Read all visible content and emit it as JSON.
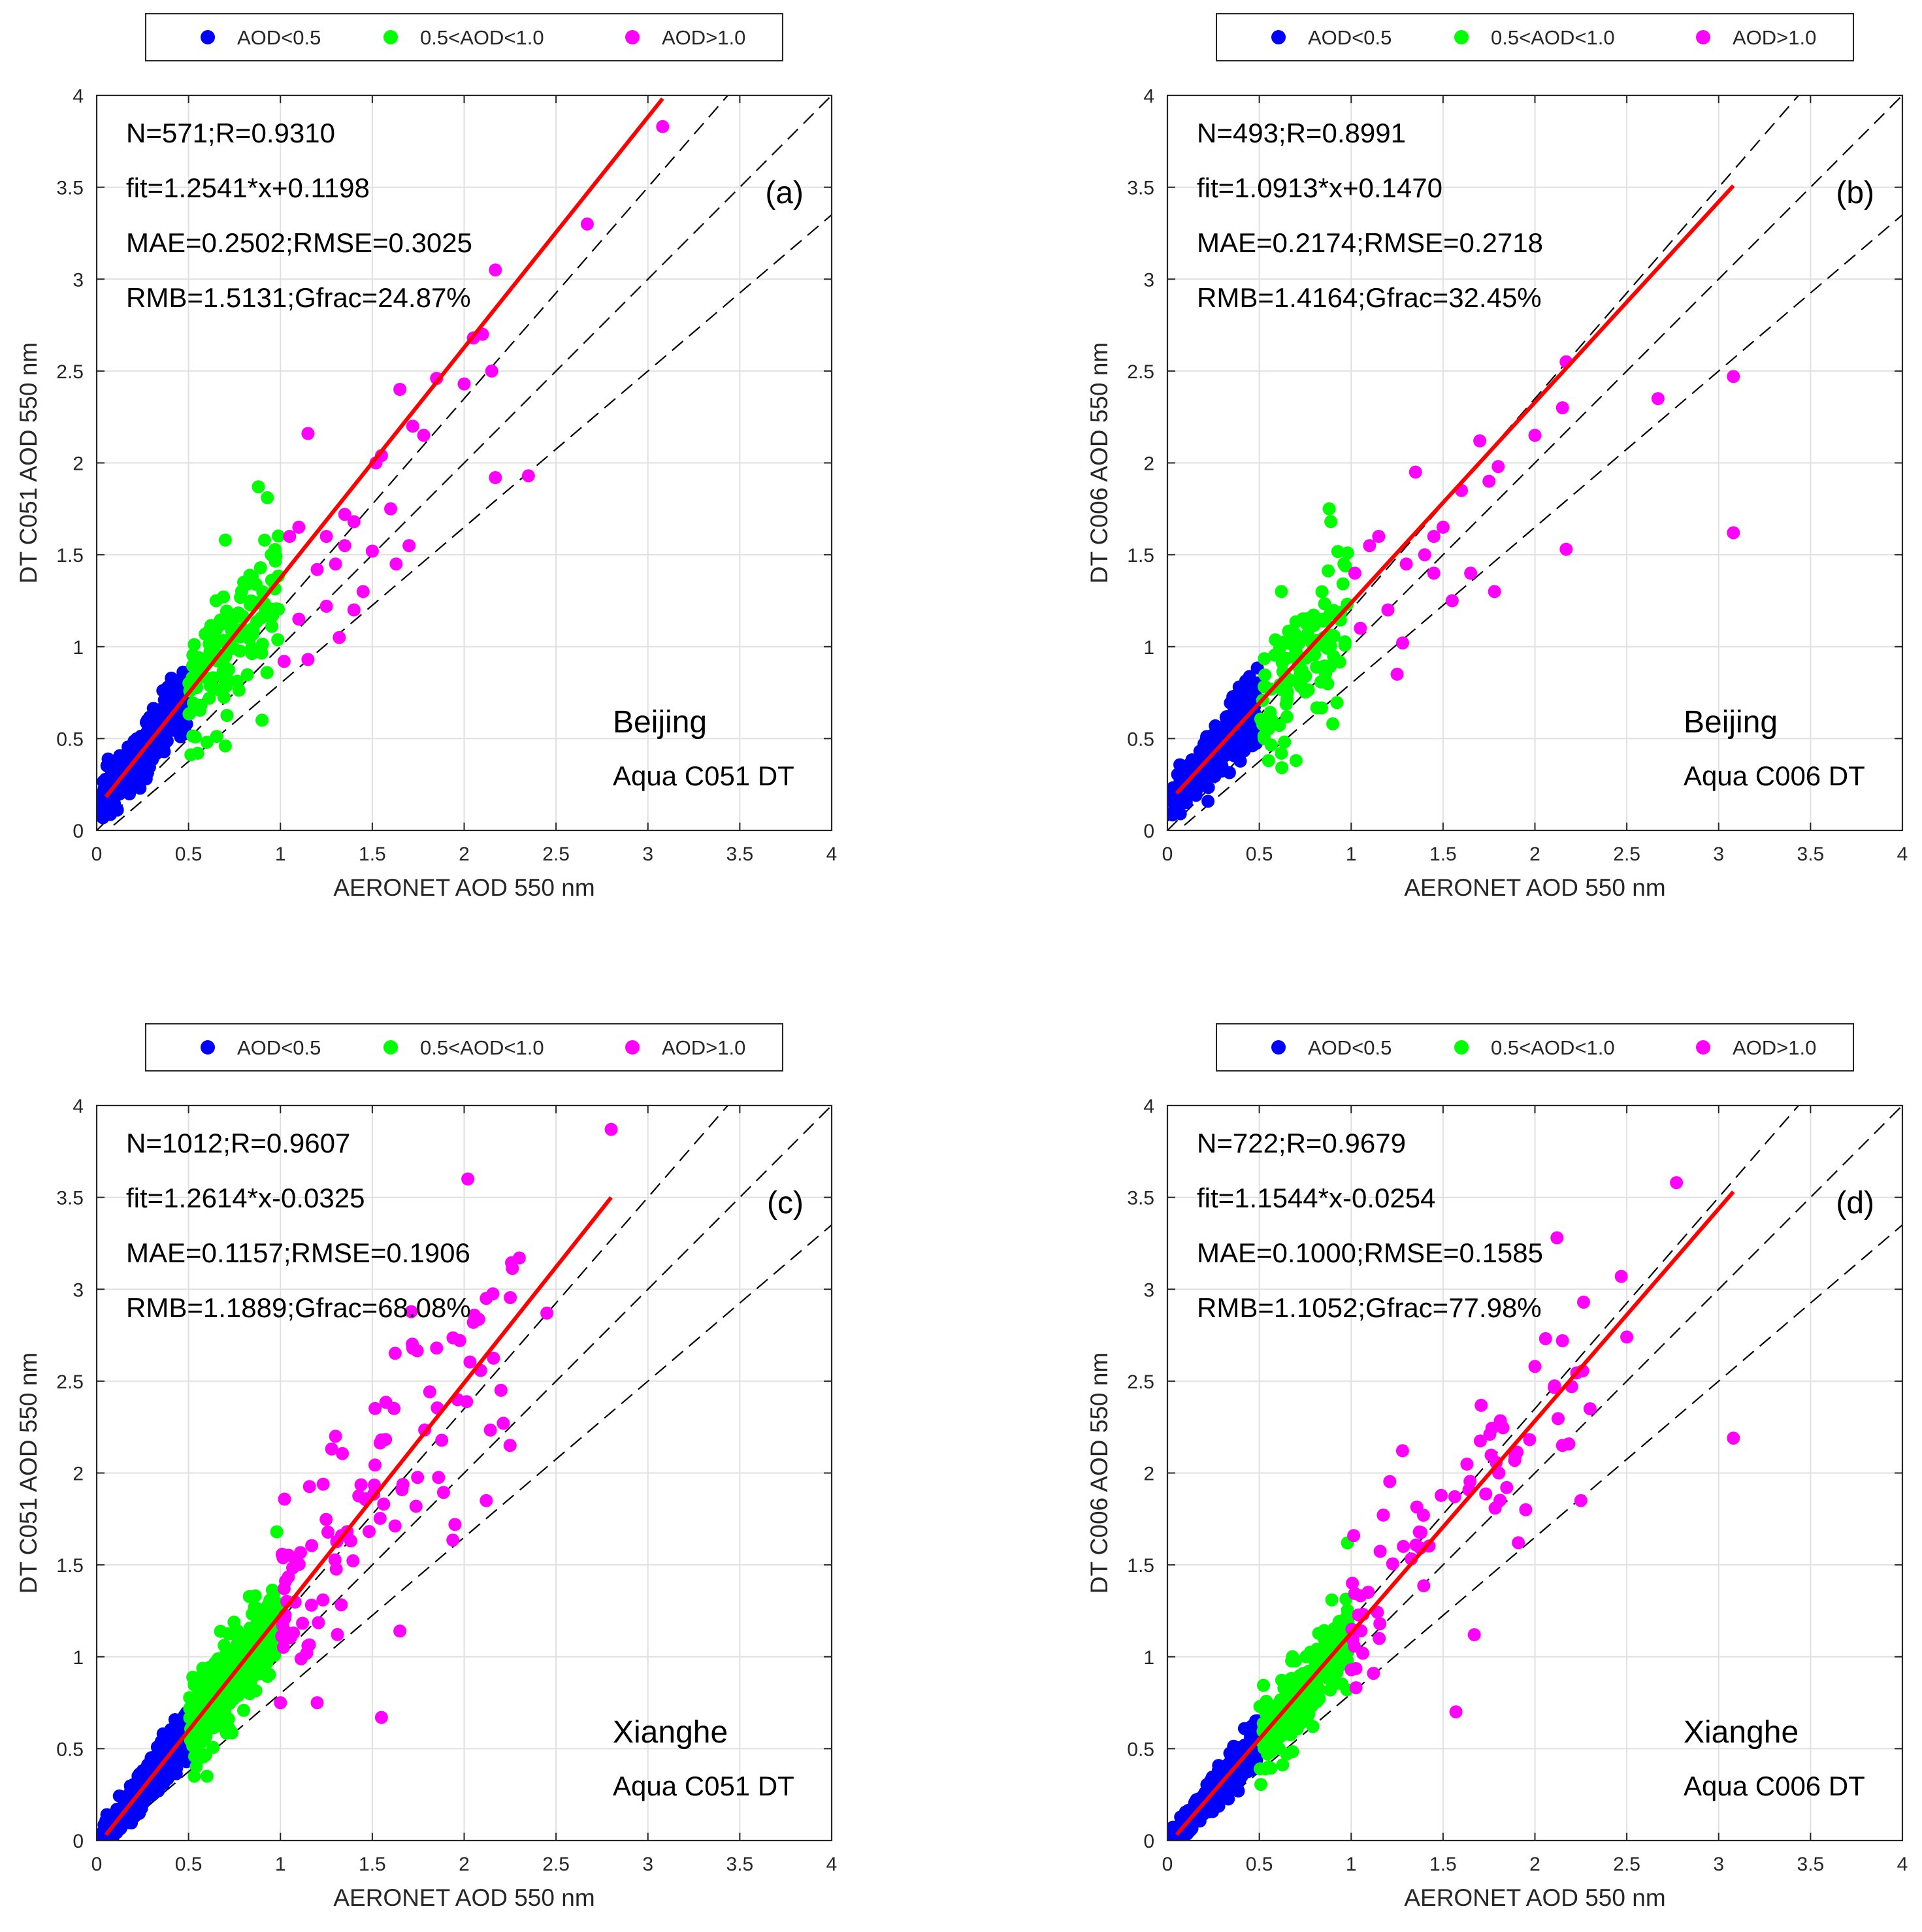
{
  "colors": {
    "low": "#0000ff",
    "mid": "#00ff00",
    "high": "#ff00ff",
    "fit": "#ff0000",
    "ref": "#000000",
    "grid": "#e0e0e0"
  },
  "chart_data": [
    {
      "type": "scatter",
      "panel": "(a)",
      "site": "Beijing",
      "product": "Aqua C051 DT",
      "xlabel": "AERONET AOD 550 nm",
      "ylabel": "DT C051 AOD 550 nm",
      "xlim": [
        0,
        4
      ],
      "ylim": [
        0,
        4
      ],
      "ticks": [
        "0",
        "0.5",
        "1",
        "1.5",
        "2",
        "2.5",
        "3",
        "3.5",
        "4"
      ],
      "legend": [
        "AOD<0.5",
        "0.5<AOD<1.0",
        "AOD>1.0"
      ],
      "stats": [
        "N=571;R=0.9310",
        "fit=1.2541*x+0.1198",
        "MAE=0.2502;RMSE=0.3025",
        "RMB=1.5131;Gfrac=24.87%"
      ],
      "fit": {
        "slope": 1.2541,
        "intercept": 0.1198,
        "x_range": [
          0.05,
          3.08
        ]
      },
      "n": 571,
      "seed": 11,
      "scatter_spread": 0.34,
      "high_points": [
        [
          1.02,
          0.92
        ],
        [
          1.05,
          1.6
        ],
        [
          1.1,
          1.65
        ],
        [
          1.15,
          0.93
        ],
        [
          1.2,
          1.42
        ],
        [
          1.25,
          1.6
        ],
        [
          1.3,
          1.45
        ],
        [
          1.32,
          1.05
        ],
        [
          1.35,
          1.55
        ],
        [
          1.4,
          1.68
        ],
        [
          1.45,
          1.3
        ],
        [
          1.5,
          1.52
        ],
        [
          1.52,
          2.0
        ],
        [
          1.55,
          2.04
        ],
        [
          1.6,
          1.75
        ],
        [
          1.63,
          1.45
        ],
        [
          1.65,
          2.4
        ],
        [
          1.7,
          1.55
        ],
        [
          1.72,
          2.2
        ],
        [
          1.78,
          2.15
        ],
        [
          1.85,
          2.46
        ],
        [
          2.0,
          2.43
        ],
        [
          2.05,
          2.68
        ],
        [
          2.1,
          2.7
        ],
        [
          2.15,
          2.5
        ],
        [
          2.17,
          3.05
        ],
        [
          2.35,
          1.93
        ],
        [
          2.17,
          1.92
        ],
        [
          2.67,
          3.3
        ],
        [
          3.08,
          3.83
        ],
        [
          1.15,
          2.16
        ],
        [
          1.35,
          1.72
        ],
        [
          1.1,
          1.15
        ],
        [
          1.25,
          1.22
        ],
        [
          1.4,
          1.2
        ]
      ],
      "mid_points": [
        [
          0.55,
          0.42
        ],
        [
          0.6,
          0.48
        ],
        [
          0.7,
          0.46
        ],
        [
          0.9,
          0.6
        ],
        [
          0.7,
          1.58
        ],
        [
          0.88,
          1.87
        ],
        [
          0.65,
          1.25
        ],
        [
          0.8,
          1.35
        ],
        [
          0.95,
          1.5
        ]
      ]
    },
    {
      "type": "scatter",
      "panel": "(b)",
      "site": "Beijing",
      "product": "Aqua C006 DT",
      "xlabel": "AERONET AOD 550 nm",
      "ylabel": "DT C006 AOD 550 nm",
      "xlim": [
        0,
        4
      ],
      "ylim": [
        0,
        4
      ],
      "ticks": [
        "0",
        "0.5",
        "1",
        "1.5",
        "2",
        "2.5",
        "3",
        "3.5",
        "4"
      ],
      "legend": [
        "AOD<0.5",
        "0.5<AOD<1.0",
        "AOD>1.0"
      ],
      "stats": [
        "N=493;R=0.8991",
        "fit=1.0913*x+0.1470",
        "MAE=0.2174;RMSE=0.2718",
        "RMB=1.4164;Gfrac=32.45%"
      ],
      "fit": {
        "slope": 1.0913,
        "intercept": 0.147,
        "x_range": [
          0.05,
          3.08
        ]
      },
      "n": 493,
      "seed": 23,
      "scatter_spread": 0.3,
      "high_points": [
        [
          1.02,
          1.4
        ],
        [
          1.05,
          1.1
        ],
        [
          1.1,
          1.55
        ],
        [
          1.15,
          1.6
        ],
        [
          1.2,
          1.2
        ],
        [
          1.25,
          0.85
        ],
        [
          1.3,
          1.45
        ],
        [
          1.35,
          1.95
        ],
        [
          1.4,
          1.5
        ],
        [
          1.45,
          1.6
        ],
        [
          1.5,
          1.65
        ],
        [
          1.55,
          1.25
        ],
        [
          1.6,
          1.85
        ],
        [
          1.65,
          1.4
        ],
        [
          1.7,
          2.12
        ],
        [
          1.75,
          1.9
        ],
        [
          1.78,
          1.3
        ],
        [
          1.8,
          1.98
        ],
        [
          2.0,
          2.15
        ],
        [
          2.15,
          2.3
        ],
        [
          2.17,
          2.55
        ],
        [
          2.17,
          1.53
        ],
        [
          2.67,
          2.35
        ],
        [
          3.08,
          2.47
        ],
        [
          3.08,
          1.62
        ],
        [
          1.28,
          1.02
        ],
        [
          1.45,
          1.4
        ]
      ],
      "mid_points": [
        [
          0.55,
          0.38
        ],
        [
          0.62,
          0.42
        ],
        [
          0.7,
          0.38
        ],
        [
          0.88,
          1.75
        ],
        [
          0.9,
          0.58
        ],
        [
          0.62,
          1.3
        ]
      ]
    },
    {
      "type": "scatter",
      "panel": "(c)",
      "site": "Xianghe",
      "product": "Aqua C051 DT",
      "xlabel": "AERONET AOD 550 nm",
      "ylabel": "DT C051 AOD 550 nm",
      "xlim": [
        0,
        4
      ],
      "ylim": [
        0,
        4
      ],
      "ticks": [
        "0",
        "0.5",
        "1",
        "1.5",
        "2",
        "2.5",
        "3",
        "3.5",
        "4"
      ],
      "legend": [
        "AOD<0.5",
        "0.5<AOD<1.0",
        "AOD>1.0"
      ],
      "stats": [
        "N=1012;R=0.9607",
        "fit=1.2614*x-0.0325",
        "MAE=0.1157;RMSE=0.1906",
        "RMB=1.1889;Gfrac=68.08%"
      ],
      "fit": {
        "slope": 1.2614,
        "intercept": -0.0325,
        "x_range": [
          0.05,
          2.8
        ]
      },
      "n": 1012,
      "seed": 37,
      "scatter_spread": 0.22,
      "high_points": [
        [
          1.55,
          0.67
        ],
        [
          1.65,
          1.14
        ],
        [
          2.02,
          3.6
        ],
        [
          2.3,
          3.17
        ],
        [
          2.8,
          3.87
        ],
        [
          2.45,
          2.87
        ],
        [
          2.12,
          2.95
        ],
        [
          2.05,
          2.82
        ],
        [
          1.85,
          2.68
        ],
        [
          2.2,
          2.45
        ],
        [
          2.25,
          2.15
        ],
        [
          2.12,
          1.85
        ],
        [
          1.95,
          1.72
        ],
        [
          1.3,
          2.2
        ],
        [
          1.55,
          2.18
        ],
        [
          1.2,
          0.75
        ],
        [
          1.15,
          1.06
        ],
        [
          1.0,
          0.75
        ]
      ],
      "mid_points": [
        [
          0.98,
          1.68
        ],
        [
          0.6,
          0.35
        ]
      ]
    },
    {
      "type": "scatter",
      "panel": "(d)",
      "site": "Xianghe",
      "product": "Aqua C006 DT",
      "xlabel": "AERONET AOD 550 nm",
      "ylabel": "DT C006 AOD 550 nm",
      "xlim": [
        0,
        4
      ],
      "ylim": [
        0,
        4
      ],
      "ticks": [
        "0",
        "0.5",
        "1",
        "1.5",
        "2",
        "2.5",
        "3",
        "3.5",
        "4"
      ],
      "legend": [
        "AOD<0.5",
        "0.5<AOD<1.0",
        "AOD>1.0"
      ],
      "stats": [
        "N=722;R=0.9679",
        "fit=1.1544*x-0.0254",
        "MAE=0.1000;RMSE=0.1585",
        "RMB=1.1052;Gfrac=77.98%"
      ],
      "fit": {
        "slope": 1.1544,
        "intercept": -0.0254,
        "x_range": [
          0.05,
          3.08
        ]
      },
      "n": 722,
      "seed": 53,
      "scatter_spread": 0.2,
      "high_points": [
        [
          2.77,
          3.58
        ],
        [
          2.12,
          3.28
        ],
        [
          2.47,
          3.07
        ],
        [
          2.5,
          2.74
        ],
        [
          2.15,
          2.72
        ],
        [
          3.08,
          2.19
        ],
        [
          1.57,
          0.7
        ],
        [
          1.67,
          1.12
        ],
        [
          2.0,
          2.58
        ],
        [
          2.2,
          2.47
        ],
        [
          2.25,
          1.85
        ],
        [
          2.3,
          2.35
        ],
        [
          2.15,
          2.15
        ],
        [
          1.95,
          1.8
        ]
      ],
      "mid_points": [
        [
          0.98,
          1.62
        ],
        [
          0.55,
          0.4
        ]
      ]
    }
  ]
}
